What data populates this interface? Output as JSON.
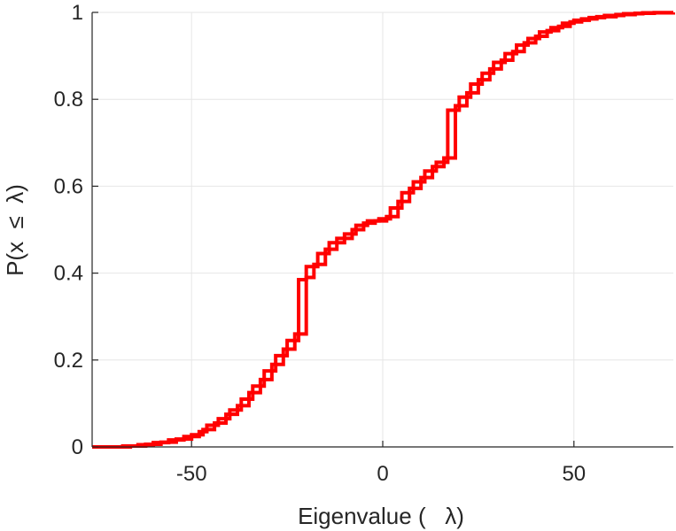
{
  "chart_data": {
    "type": "line",
    "title": "",
    "xlabel": "Eigenvalue (   λ)",
    "ylabel": "P(x  ≤  λ)",
    "xlim": [
      -76,
      76
    ],
    "ylim": [
      0,
      1
    ],
    "x_ticks": [
      -50,
      0,
      50
    ],
    "x_tick_labels": [
      "-50",
      "0",
      "50"
    ],
    "y_ticks": [
      0,
      0.2,
      0.4,
      0.6,
      0.8,
      1
    ],
    "y_tick_labels": [
      "0",
      "0.2",
      "0.4",
      "0.6",
      "0.8",
      "1"
    ],
    "grid": true,
    "line_style": "step",
    "series": [
      {
        "color": "#ff0000",
        "x": [
          -76,
          -68,
          -64,
          -60,
          -56,
          -52,
          -48,
          -46,
          -43,
          -40,
          -37,
          -34,
          -31,
          -28,
          -25,
          -22,
          -20,
          -17,
          -14,
          -10,
          -7,
          -4,
          -1,
          2,
          5,
          8,
          11,
          14,
          17,
          20,
          23,
          26,
          29,
          32,
          35,
          38,
          41,
          44,
          47,
          50,
          54,
          58,
          63,
          68,
          76
        ],
        "y": [
          0.0,
          0.002,
          0.005,
          0.01,
          0.016,
          0.024,
          0.035,
          0.05,
          0.065,
          0.085,
          0.11,
          0.14,
          0.175,
          0.21,
          0.245,
          0.385,
          0.415,
          0.445,
          0.47,
          0.49,
          0.51,
          0.52,
          0.525,
          0.55,
          0.585,
          0.61,
          0.635,
          0.655,
          0.775,
          0.805,
          0.835,
          0.86,
          0.885,
          0.905,
          0.925,
          0.94,
          0.955,
          0.965,
          0.975,
          0.982,
          0.988,
          0.993,
          0.997,
          0.999,
          1.0
        ]
      },
      {
        "color": "#ff0000",
        "x": [
          -76,
          -66,
          -62,
          -58,
          -54,
          -50,
          -47,
          -44,
          -41,
          -38,
          -35,
          -32,
          -29,
          -26,
          -23,
          -20,
          -18,
          -15,
          -12,
          -8,
          -5,
          -2,
          1,
          4,
          7,
          10,
          13,
          16,
          19,
          22,
          25,
          28,
          31,
          34,
          37,
          40,
          43,
          46,
          49,
          52,
          56,
          61,
          66,
          71,
          76
        ],
        "y": [
          0.0,
          0.002,
          0.006,
          0.011,
          0.018,
          0.028,
          0.04,
          0.055,
          0.075,
          0.095,
          0.125,
          0.155,
          0.19,
          0.225,
          0.26,
          0.39,
          0.42,
          0.455,
          0.48,
          0.5,
          0.515,
          0.52,
          0.53,
          0.565,
          0.595,
          0.62,
          0.645,
          0.665,
          0.785,
          0.815,
          0.845,
          0.87,
          0.89,
          0.91,
          0.93,
          0.945,
          0.958,
          0.968,
          0.978,
          0.985,
          0.99,
          0.995,
          0.998,
          0.9995,
          1.0
        ]
      }
    ]
  }
}
